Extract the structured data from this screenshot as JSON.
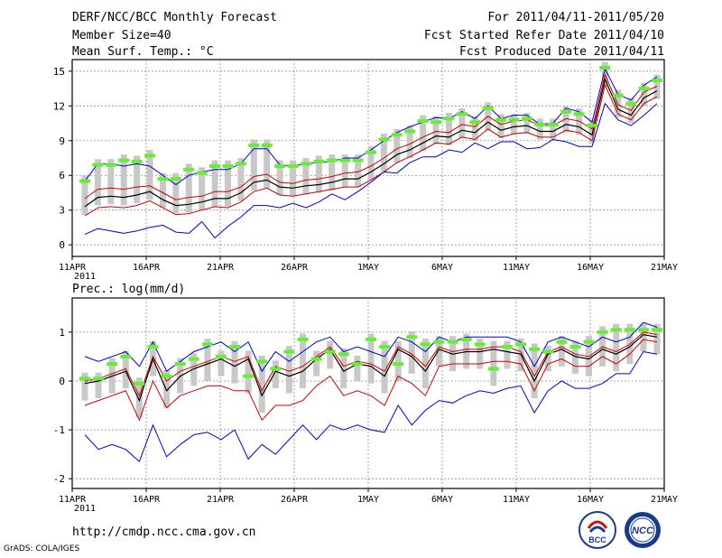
{
  "header": {
    "title": "DERF/NCC/BCC Monthly Forecast",
    "member": "Member Size=40",
    "variable": "Mean Surf. Temp.: °C",
    "period": "For 2011/04/11-2011/05/20",
    "started": "Fcst Started Refer Date 2011/04/10",
    "produced": "Fcst Produced Date 2011/04/11"
  },
  "footer": {
    "url": "http://cmdp.ncc.cma.gov.cn",
    "credit": "GrADS: COLA/IGES",
    "logo_left_text": "BCC",
    "logo_right_text": "NCC"
  },
  "colors": {
    "grid": "#8c8c8c",
    "box": "#c8c8c8",
    "mean": "#66ee33",
    "blue": "#0000cc",
    "red": "#cc0000",
    "black": "#000000"
  },
  "chart_data": [
    {
      "type": "line",
      "title": "Mean Surf. Temp.: °C",
      "ylabel": "°C",
      "ylim": [
        -1,
        16
      ],
      "yticks": [
        0,
        3,
        6,
        9,
        12,
        15
      ],
      "xticks": [
        "11APR",
        "16APR",
        "21APR",
        "26APR",
        "1MAY",
        "6MAY",
        "11MAY",
        "16MAY",
        "21MAY"
      ],
      "xtick_year": "2011",
      "series": [
        {
          "name": "max",
          "values": [
            5.5,
            7.0,
            7.0,
            6.8,
            7.0,
            6.8,
            6.0,
            5.2,
            6.0,
            6.3,
            6.5,
            6.5,
            7.0,
            8.3,
            8.3,
            6.9,
            6.8,
            7.0,
            7.1,
            7.2,
            7.5,
            7.5,
            8.2,
            9.0,
            9.7,
            10.2,
            10.6,
            11.0,
            10.9,
            11.5,
            10.9,
            12.0,
            10.9,
            11.2,
            11.2,
            10.4,
            10.5,
            11.8,
            11.5,
            10.6,
            15.2,
            13.0,
            12.5,
            13.8,
            14.5
          ]
        },
        {
          "name": "upper",
          "values": [
            4.0,
            4.8,
            4.9,
            4.8,
            5.0,
            5.1,
            4.5,
            3.9,
            4.1,
            4.2,
            4.6,
            4.6,
            5.0,
            5.9,
            6.1,
            5.4,
            5.3,
            5.6,
            5.7,
            5.9,
            6.2,
            6.3,
            6.8,
            7.5,
            8.3,
            8.7,
            9.3,
            9.8,
            9.7,
            10.4,
            10.2,
            11.1,
            10.4,
            10.7,
            10.8,
            10.3,
            10.3,
            10.9,
            10.7,
            10.0,
            14.7,
            12.1,
            11.6,
            13.2,
            13.7
          ]
        },
        {
          "name": "median",
          "values": [
            3.3,
            4.1,
            4.2,
            4.1,
            4.3,
            4.6,
            3.9,
            3.4,
            3.5,
            3.7,
            4.0,
            4.0,
            4.5,
            5.4,
            5.6,
            5.0,
            4.9,
            5.1,
            5.2,
            5.4,
            5.7,
            5.7,
            6.3,
            7.0,
            7.8,
            8.2,
            8.8,
            9.4,
            9.3,
            9.9,
            9.7,
            10.6,
            9.9,
            10.2,
            10.3,
            9.8,
            9.8,
            10.4,
            10.2,
            9.5,
            14.3,
            11.7,
            11.2,
            12.7,
            13.3
          ]
        },
        {
          "name": "lower",
          "values": [
            2.5,
            3.2,
            3.3,
            3.2,
            3.4,
            3.8,
            3.2,
            2.6,
            2.7,
            3.0,
            3.3,
            3.2,
            3.7,
            4.6,
            4.9,
            4.3,
            4.2,
            4.4,
            4.6,
            4.8,
            5.0,
            5.0,
            5.6,
            6.3,
            7.1,
            7.6,
            8.2,
            8.8,
            8.7,
            9.3,
            9.1,
            10.0,
            9.3,
            9.6,
            9.7,
            9.3,
            9.3,
            9.9,
            9.7,
            9.0,
            13.8,
            11.3,
            10.8,
            12.2,
            12.8
          ]
        },
        {
          "name": "min",
          "values": [
            0.9,
            1.4,
            1.2,
            1.0,
            1.2,
            1.5,
            1.7,
            1.1,
            1.0,
            2.0,
            0.6,
            1.6,
            2.4,
            3.4,
            3.4,
            3.2,
            3.6,
            3.2,
            3.7,
            4.4,
            3.9,
            4.6,
            5.4,
            6.3,
            6.2,
            7.1,
            7.6,
            7.6,
            8.2,
            8.0,
            8.8,
            8.3,
            8.9,
            8.9,
            8.3,
            8.4,
            9.1,
            8.9,
            8.5,
            8.5,
            12.2,
            10.8,
            10.3,
            11.2,
            12.2
          ]
        },
        {
          "name": "ensemble_mean",
          "values": [
            5.5,
            6.9,
            6.9,
            7.3,
            7.2,
            7.7,
            5.7,
            5.7,
            6.5,
            6.2,
            6.8,
            6.8,
            7.0,
            8.6,
            8.6,
            6.8,
            6.8,
            7.0,
            7.2,
            7.3,
            7.3,
            7.3,
            8.0,
            9.1,
            9.5,
            9.8,
            10.7,
            10.6,
            10.9,
            11.3,
            10.6,
            11.8,
            10.8,
            10.8,
            10.9,
            10.4,
            10.4,
            11.5,
            11.3,
            10.3,
            15.3,
            12.9,
            12.2,
            13.5,
            14.2
          ]
        }
      ]
    },
    {
      "type": "line",
      "title": "Prec.: log(mm/d)",
      "ylabel": "log(mm/d)",
      "ylim": [
        -2.2,
        1.7
      ],
      "yticks": [
        -2,
        -1,
        0,
        1
      ],
      "xticks": [
        "11APR",
        "16APR",
        "21APR",
        "26APR",
        "1MAY",
        "6MAY",
        "11MAY",
        "16MAY",
        "21MAY"
      ],
      "xtick_year": "2011",
      "series": [
        {
          "name": "max",
          "values": [
            0.5,
            0.4,
            0.5,
            0.6,
            0.3,
            0.8,
            0.2,
            0.4,
            0.6,
            0.7,
            0.8,
            0.6,
            0.8,
            0.2,
            0.6,
            0.4,
            0.6,
            0.8,
            0.9,
            0.6,
            0.7,
            0.6,
            0.5,
            0.9,
            0.8,
            0.6,
            0.9,
            0.8,
            0.9,
            0.9,
            0.9,
            0.9,
            0.8,
            0.3,
            0.8,
            0.9,
            0.8,
            0.7,
            0.9,
            0.8,
            0.9,
            1.2,
            1.1
          ]
        },
        {
          "name": "upper",
          "values": [
            0.0,
            0.05,
            0.15,
            0.25,
            -0.3,
            0.5,
            0.0,
            0.2,
            0.3,
            0.4,
            0.5,
            0.4,
            0.5,
            -0.2,
            0.3,
            0.2,
            0.3,
            0.5,
            0.7,
            0.3,
            0.4,
            0.35,
            0.2,
            0.7,
            0.55,
            0.3,
            0.7,
            0.6,
            0.65,
            0.65,
            0.7,
            0.7,
            0.6,
            0.1,
            0.6,
            0.7,
            0.55,
            0.5,
            0.7,
            0.6,
            0.75,
            1.0,
            0.95
          ]
        },
        {
          "name": "median",
          "values": [
            -0.05,
            0.0,
            0.1,
            0.2,
            -0.4,
            0.45,
            -0.2,
            0.1,
            0.25,
            0.35,
            0.45,
            0.3,
            0.45,
            -0.3,
            0.2,
            0.1,
            0.2,
            0.45,
            0.65,
            0.2,
            0.35,
            0.3,
            0.1,
            0.65,
            0.5,
            0.2,
            0.65,
            0.55,
            0.6,
            0.6,
            0.65,
            0.6,
            0.55,
            0.0,
            0.55,
            0.65,
            0.5,
            0.45,
            0.65,
            0.55,
            0.7,
            0.95,
            0.9
          ]
        },
        {
          "name": "lower",
          "values": [
            -0.5,
            -0.4,
            -0.3,
            -0.2,
            -0.8,
            0.0,
            -0.55,
            -0.3,
            -0.2,
            -0.1,
            -0.1,
            -0.2,
            -0.2,
            -0.8,
            -0.5,
            -0.5,
            -0.4,
            -0.1,
            0.1,
            -0.3,
            -0.2,
            -0.3,
            -0.5,
            0.1,
            -0.05,
            -0.3,
            0.3,
            0.35,
            0.35,
            0.35,
            0.4,
            0.4,
            0.35,
            -0.2,
            0.35,
            0.45,
            0.3,
            0.3,
            0.5,
            0.35,
            0.55,
            0.85,
            0.8
          ]
        },
        {
          "name": "min",
          "values": [
            -1.1,
            -1.4,
            -1.3,
            -1.4,
            -1.65,
            -0.9,
            -1.55,
            -1.3,
            -1.1,
            -1.05,
            -1.2,
            -1.0,
            -1.6,
            -1.3,
            -1.5,
            -1.2,
            -0.9,
            -1.2,
            -0.9,
            -1.0,
            -0.9,
            -1.0,
            -1.05,
            -0.5,
            -0.9,
            -0.6,
            -0.4,
            -0.45,
            -0.3,
            -0.2,
            -0.25,
            -0.15,
            -0.1,
            -0.65,
            -0.2,
            0.0,
            -0.15,
            -0.15,
            -0.05,
            0.15,
            0.15,
            0.6,
            0.55
          ]
        },
        {
          "name": "ensemble_mean",
          "values": [
            0.05,
            0.05,
            0.35,
            0.5,
            -0.05,
            0.7,
            0.1,
            0.35,
            0.45,
            0.75,
            0.5,
            0.7,
            0.1,
            0.4,
            0.25,
            0.6,
            0.85,
            0.45,
            0.6,
            0.55,
            0.35,
            0.85,
            0.7,
            0.35,
            0.9,
            0.75,
            0.8,
            0.8,
            0.85,
            0.75,
            0.25,
            0.7,
            0.75,
            0.65,
            0.6,
            0.8,
            0.7,
            0.8,
            1.0,
            1.05,
            1.05,
            1.05,
            1.05
          ]
        }
      ]
    }
  ]
}
